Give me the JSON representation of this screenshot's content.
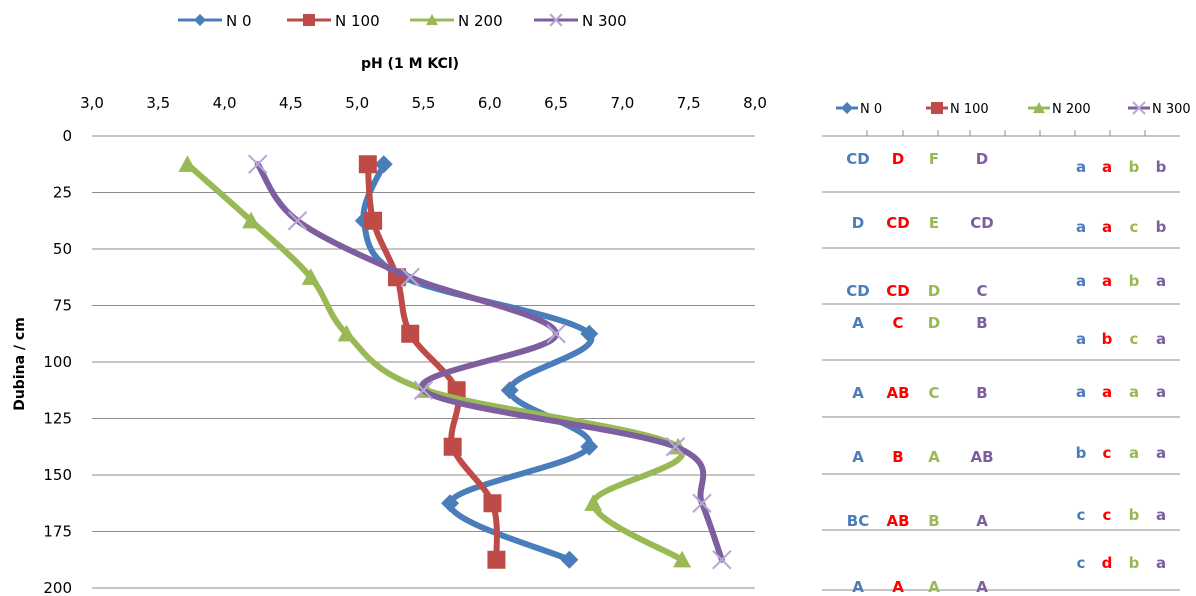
{
  "chart_data": {
    "type": "line",
    "title": "",
    "xlabel": "pH (1 M KCl)",
    "ylabel": "Dubina / cm",
    "xlim": [
      3.0,
      8.0
    ],
    "ylim": [
      0,
      200
    ],
    "y_inverted": true,
    "x_axis_position": "top",
    "x_ticks": [
      "3,0",
      "3,5",
      "4,0",
      "4,5",
      "5,0",
      "5,5",
      "6,0",
      "6,5",
      "7,0",
      "7,5",
      "8,0"
    ],
    "y_ticks": [
      "0",
      "25",
      "50",
      "75",
      "100",
      "125",
      "150",
      "175",
      "200"
    ],
    "grid": "horizontal",
    "legend_position": "top",
    "depths": [
      12.5,
      37.5,
      62.5,
      87.5,
      112.5,
      137.5,
      162.5,
      187.5
    ],
    "series": [
      {
        "name": "N 0",
        "color": "#4a7ebb",
        "marker": "diamond",
        "values": [
          5.2,
          5.05,
          5.35,
          6.75,
          6.15,
          6.75,
          5.7,
          6.6
        ]
      },
      {
        "name": "N 100",
        "color": "#be4b48",
        "marker": "square",
        "values": [
          5.08,
          5.12,
          5.3,
          5.4,
          5.75,
          5.72,
          6.02,
          6.05
        ]
      },
      {
        "name": "N 200",
        "color": "#98b954",
        "marker": "triangle",
        "values": [
          3.72,
          4.2,
          4.65,
          4.92,
          5.52,
          7.42,
          6.78,
          7.45
        ]
      },
      {
        "name": "N 300",
        "color": "#7d5fa0",
        "marker": "x",
        "values": [
          4.25,
          4.55,
          5.4,
          6.5,
          5.5,
          7.4,
          7.6,
          7.75
        ]
      }
    ],
    "letters_upper": [
      [
        "CD",
        "D",
        "F",
        "D"
      ],
      [
        "D",
        "CD",
        "E",
        "CD"
      ],
      [
        "CD",
        "CD",
        "D",
        "C"
      ],
      [
        "A",
        "C",
        "D",
        "B"
      ],
      [
        "A",
        "AB",
        "C",
        "B"
      ],
      [
        "A",
        "B",
        "A",
        "AB"
      ],
      [
        "BC",
        "AB",
        "B",
        "A"
      ],
      [
        "A",
        "A",
        "A",
        "A"
      ]
    ],
    "letters_lower": [
      [
        "a",
        "a",
        "b",
        "b"
      ],
      [
        "a",
        "a",
        "c",
        "b"
      ],
      [
        "a",
        "a",
        "b",
        "a"
      ],
      [
        "a",
        "b",
        "c",
        "a"
      ],
      [
        "a",
        "a",
        "a",
        "a"
      ],
      [
        "b",
        "c",
        "a",
        "a"
      ],
      [
        "c",
        "c",
        "b",
        "a"
      ],
      [
        "c",
        "d",
        "b",
        "a"
      ]
    ]
  }
}
